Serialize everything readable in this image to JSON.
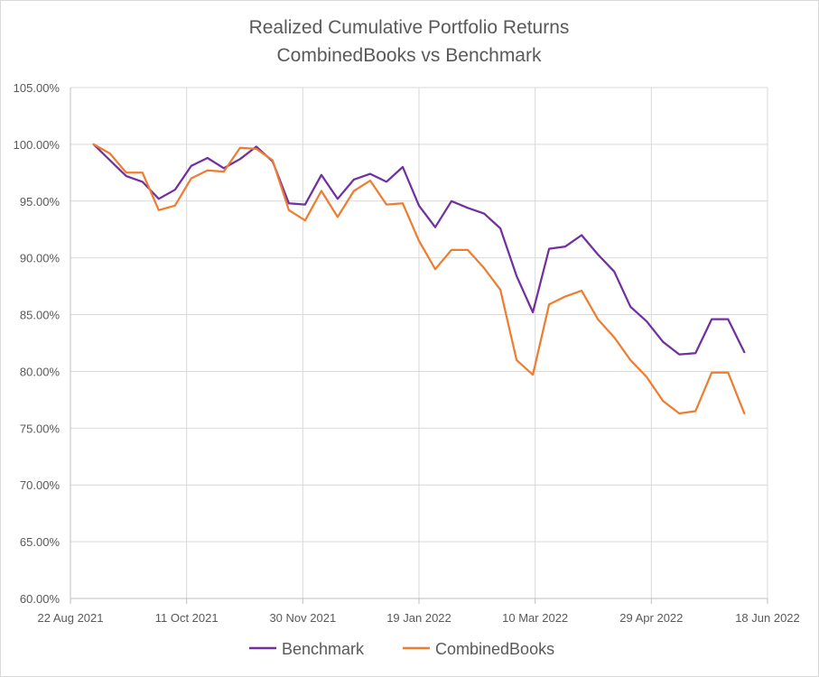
{
  "chart_data": {
    "type": "line",
    "title": "Realized Cumulative Portfolio Returns",
    "subtitle": "CombinedBooks vs Benchmark",
    "xlabel": "",
    "ylabel": "",
    "xlim": [
      "2021-08-22",
      "2022-06-18"
    ],
    "ylim": [
      60,
      105
    ],
    "x_ticks": [
      "22 Aug 2021",
      "11 Oct 2021",
      "30 Nov 2021",
      "19 Jan 2022",
      "10 Mar 2022",
      "29 Apr 2022",
      "18 Jun 2022"
    ],
    "y_ticks": [
      "60.00%",
      "65.00%",
      "70.00%",
      "75.00%",
      "80.00%",
      "85.00%",
      "90.00%",
      "95.00%",
      "100.00%",
      "105.00%"
    ],
    "grid": true,
    "legend_position": "bottom",
    "x": [
      "2021-09-01",
      "2021-09-08",
      "2021-09-15",
      "2021-09-22",
      "2021-09-29",
      "2021-10-06",
      "2021-10-13",
      "2021-10-20",
      "2021-10-27",
      "2021-11-03",
      "2021-11-10",
      "2021-11-17",
      "2021-11-24",
      "2021-12-01",
      "2021-12-08",
      "2021-12-15",
      "2021-12-22",
      "2021-12-29",
      "2022-01-05",
      "2022-01-12",
      "2022-01-19",
      "2022-01-26",
      "2022-02-02",
      "2022-02-09",
      "2022-02-16",
      "2022-02-23",
      "2022-03-02",
      "2022-03-09",
      "2022-03-16",
      "2022-03-23",
      "2022-03-30",
      "2022-04-06",
      "2022-04-13",
      "2022-04-20",
      "2022-04-27",
      "2022-05-04",
      "2022-05-11",
      "2022-05-18",
      "2022-05-25",
      "2022-06-01",
      "2022-06-08"
    ],
    "series": [
      {
        "name": "Benchmark",
        "color": "#7030a0",
        "values": [
          100.0,
          98.6,
          97.2,
          96.7,
          95.2,
          96.0,
          98.1,
          98.8,
          97.9,
          98.7,
          99.8,
          98.5,
          94.8,
          94.7,
          97.3,
          95.2,
          96.9,
          97.4,
          96.7,
          98.0,
          94.6,
          92.7,
          95.0,
          94.4,
          93.9,
          92.6,
          88.4,
          85.2,
          90.8,
          91.0,
          92.0,
          90.3,
          88.8,
          85.7,
          84.4,
          82.6,
          81.5,
          81.6,
          84.6,
          84.6,
          81.7
        ]
      },
      {
        "name": "CombinedBooks",
        "color": "#ed7d31",
        "values": [
          100.0,
          99.2,
          97.5,
          97.5,
          94.2,
          94.6,
          97.0,
          97.7,
          97.6,
          99.7,
          99.6,
          98.6,
          94.2,
          93.3,
          95.9,
          93.6,
          95.9,
          96.8,
          94.7,
          94.8,
          91.5,
          89.0,
          90.7,
          90.7,
          89.1,
          87.2,
          81.0,
          79.7,
          85.9,
          86.6,
          87.1,
          84.6,
          83.0,
          81.0,
          79.5,
          77.4,
          76.3,
          76.5,
          79.9,
          79.9,
          76.3
        ]
      }
    ]
  }
}
